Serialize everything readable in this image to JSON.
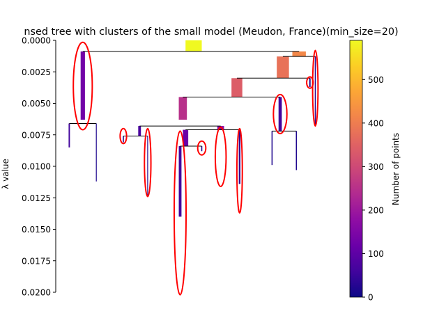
{
  "chart_data": {
    "type": "dendrogram",
    "title": "nsed tree with clusters of the small model (Meudon, France)(min_size=20)",
    "ylabel": "λ value",
    "ylim": [
      0.0,
      0.02
    ],
    "y_inverted": true,
    "y_ticks": [
      "0.0000",
      "0.0025",
      "0.0050",
      "0.0075",
      "0.0100",
      "0.0125",
      "0.0150",
      "0.0175",
      "0.0200"
    ],
    "y_tick_values": [
      0,
      0.0025,
      0.005,
      0.0075,
      0.01,
      0.0125,
      0.015,
      0.0175,
      0.02
    ],
    "colorbar": {
      "label": "Number of points",
      "range": [
        0,
        590
      ],
      "ticks": [
        "0",
        "100",
        "200",
        "300",
        "400",
        "500"
      ],
      "tick_values": [
        0,
        100,
        200,
        300,
        400,
        500
      ]
    },
    "grid": false,
    "x_range": [
      0,
      100
    ],
    "nodes": [
      {
        "x": 51,
        "y0": 0.0,
        "y1": 0.00088,
        "w": 6.0,
        "count": 590
      },
      {
        "x": 10,
        "y0": 0.00088,
        "y1": 0.0063,
        "w": 1.6,
        "count": 130
      },
      {
        "x": 90,
        "y0": 0.00088,
        "y1": 0.00128,
        "w": 5.0,
        "count": 420
      },
      {
        "x": 84,
        "y0": 0.00128,
        "y1": 0.003,
        "w": 4.5,
        "count": 380
      },
      {
        "x": 96,
        "y0": 0.00128,
        "y1": 0.0067,
        "w": 0.4,
        "count": 30
      },
      {
        "x": 67,
        "y0": 0.003,
        "y1": 0.0045,
        "w": 4.0,
        "count": 340
      },
      {
        "x": 94,
        "y0": 0.003,
        "y1": 0.0037,
        "w": 0.5,
        "count": 20
      },
      {
        "x": 47,
        "y0": 0.0045,
        "y1": 0.0063,
        "w": 3.0,
        "count": 250
      },
      {
        "x": 83,
        "y0": 0.0045,
        "y1": 0.0072,
        "w": 1.2,
        "count": 60
      },
      {
        "x": 5,
        "y0": 0.0066,
        "y1": 0.0085,
        "w": 0.5,
        "count": 60
      },
      {
        "x": 15,
        "y0": 0.0066,
        "y1": 0.0112,
        "w": 0.3,
        "count": 20
      },
      {
        "x": 31,
        "y0": 0.0068,
        "y1": 0.0076,
        "w": 1.0,
        "count": 70
      },
      {
        "x": 61,
        "y0": 0.0068,
        "y1": 0.0071,
        "w": 2.5,
        "count": 170
      },
      {
        "x": 25,
        "y0": 0.0076,
        "y1": 0.0081,
        "w": 0.4,
        "count": 20
      },
      {
        "x": 34,
        "y0": 0.0076,
        "y1": 0.0123,
        "w": 0.3,
        "count": 20
      },
      {
        "x": 48,
        "y0": 0.0071,
        "y1": 0.0084,
        "w": 2.0,
        "count": 120
      },
      {
        "x": 68,
        "y0": 0.0071,
        "y1": 0.0114,
        "w": 0.6,
        "count": 40
      },
      {
        "x": 46,
        "y0": 0.0084,
        "y1": 0.014,
        "w": 1.0,
        "count": 60
      },
      {
        "x": 54,
        "y0": 0.0084,
        "y1": 0.0088,
        "w": 0.4,
        "count": 20
      },
      {
        "x": 80,
        "y0": 0.0072,
        "y1": 0.0099,
        "w": 0.4,
        "count": 20
      },
      {
        "x": 89,
        "y0": 0.0072,
        "y1": 0.0103,
        "w": 0.4,
        "count": 20
      }
    ],
    "joins": [
      {
        "y": 0.00088,
        "x_start": 10,
        "x_end": 90
      },
      {
        "y": 0.00128,
        "x_start": 84,
        "x_end": 96
      },
      {
        "y": 0.003,
        "x_start": 67,
        "x_end": 94
      },
      {
        "y": 0.0045,
        "x_start": 47,
        "x_end": 83
      },
      {
        "y": 0.0066,
        "x_start": 5,
        "x_end": 15
      },
      {
        "y": 0.0068,
        "x_start": 31,
        "x_end": 61
      },
      {
        "y": 0.0071,
        "x_start": 48,
        "x_end": 68
      },
      {
        "y": 0.0072,
        "x_start": 80,
        "x_end": 89
      },
      {
        "y": 0.0076,
        "x_start": 25,
        "x_end": 34
      },
      {
        "y": 0.0084,
        "x_start": 46,
        "x_end": 54
      }
    ],
    "selected_clusters": [
      {
        "x": 10,
        "y0": 0.00015,
        "y1": 0.0071,
        "rx": 3.5
      },
      {
        "x": 96,
        "y0": 0.0008,
        "y1": 0.0068,
        "rx": 1.0
      },
      {
        "x": 94,
        "y0": 0.0029,
        "y1": 0.0038,
        "rx": 1.2
      },
      {
        "x": 83,
        "y0": 0.0043,
        "y1": 0.0074,
        "rx": 2.5
      },
      {
        "x": 25,
        "y0": 0.007,
        "y1": 0.0082,
        "rx": 1.2
      },
      {
        "x": 34,
        "y0": 0.007,
        "y1": 0.0124,
        "rx": 1.2
      },
      {
        "x": 46,
        "y0": 0.0072,
        "y1": 0.0202,
        "rx": 2.2
      },
      {
        "x": 54,
        "y0": 0.008,
        "y1": 0.0091,
        "rx": 1.5
      },
      {
        "x": 61,
        "y0": 0.0069,
        "y1": 0.0116,
        "rx": 2.0
      },
      {
        "x": 68,
        "y0": 0.007,
        "y1": 0.0137,
        "rx": 1.0
      }
    ]
  }
}
